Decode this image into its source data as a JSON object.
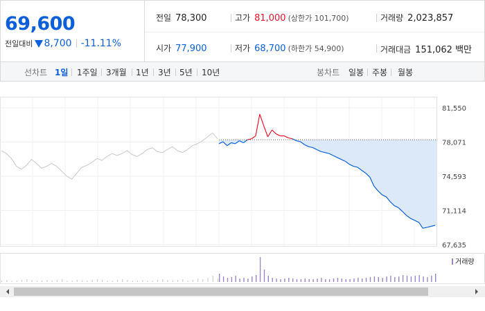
{
  "quote": {
    "price": "69,600",
    "change_label": "전일대비",
    "change_value": "8,700",
    "change_pct": "-11.11%"
  },
  "stats": {
    "prev_close": {
      "label": "전일",
      "value": "78,300"
    },
    "high": {
      "label": "고가",
      "value": "81,000",
      "sub": "(상한가 101,700)"
    },
    "volume": {
      "label": "거래량",
      "value": "2,023,857"
    },
    "open": {
      "label": "시가",
      "value": "77,900"
    },
    "low": {
      "label": "저가",
      "value": "68,700",
      "sub": "(하한가 54,900)"
    },
    "amount": {
      "label": "거래대금",
      "value": "151,062 백만"
    }
  },
  "toolbar": {
    "line_chart_label": "선차트",
    "line_periods": [
      "1일",
      "1주일",
      "3개월",
      "1년",
      "3년",
      "5년",
      "10년"
    ],
    "active_period": "1일",
    "candle_chart_label": "봉차트",
    "candle_periods": [
      "일봉",
      "주봉",
      "월봉"
    ]
  },
  "colors": {
    "up": "#e8152b",
    "down": "#0b5fd8",
    "prev_day_line": "#c8c8c8",
    "fill_below_prev_close": "#dce9f8",
    "volume_bar": "#9d86c4"
  },
  "chart_data": {
    "type": "line",
    "y_ticks": [
      "81,550",
      "78,071",
      "74,593",
      "71,114",
      "67,635"
    ],
    "ylim": [
      67635,
      81550
    ],
    "reference_line": {
      "value": 78300
    },
    "prev_day_series": [
      77200,
      76900,
      76400,
      75600,
      75300,
      75700,
      76300,
      75900,
      75400,
      75600,
      75900,
      75600,
      75100,
      74600,
      74300,
      74900,
      75500,
      75700,
      76000,
      76400,
      76200,
      76600,
      76900,
      76700,
      76900,
      77200,
      76800,
      76600,
      76900,
      77300,
      77500,
      77100,
      77000,
      77300,
      77600,
      77200,
      77000,
      77300,
      77700,
      77900,
      78200,
      78600,
      79000,
      78400
    ],
    "today_series": [
      77900,
      78100,
      77700,
      78000,
      77900,
      78200,
      78000,
      78300,
      78400,
      78700,
      80900,
      79700,
      78600,
      79300,
      78900,
      78700,
      78700,
      78500,
      78400,
      78200,
      78100,
      77800,
      77600,
      77500,
      77300,
      77100,
      77000,
      76900,
      76700,
      76500,
      76300,
      76100,
      75800,
      75600,
      75500,
      75200,
      74900,
      74500,
      73600,
      73100,
      72700,
      72500,
      72000,
      71600,
      71400,
      71000,
      70600,
      70300,
      70100,
      69900,
      69300,
      69400,
      69500,
      69600
    ],
    "volume_legend": "거래량",
    "prev_day_volume": [
      2,
      3,
      2,
      2,
      3,
      4,
      3,
      2,
      2,
      3,
      2,
      3,
      4,
      2,
      2,
      3,
      2,
      2,
      3,
      4,
      3,
      2,
      2,
      3,
      4,
      3,
      2,
      2,
      3,
      2,
      2,
      3,
      4,
      3,
      2,
      3,
      4,
      2,
      3,
      5,
      4,
      6,
      9,
      5
    ],
    "today_volume": [
      12,
      8,
      6,
      7,
      9,
      5,
      6,
      5,
      8,
      10,
      36,
      18,
      9,
      6,
      5,
      4,
      5,
      6,
      5,
      4,
      4,
      5,
      4,
      4,
      5,
      6,
      4,
      4,
      5,
      6,
      5,
      4,
      4,
      5,
      6,
      5,
      6,
      7,
      8,
      7,
      6,
      8,
      9,
      7,
      8,
      10,
      9,
      8,
      9,
      10,
      8,
      7,
      9,
      12
    ]
  }
}
